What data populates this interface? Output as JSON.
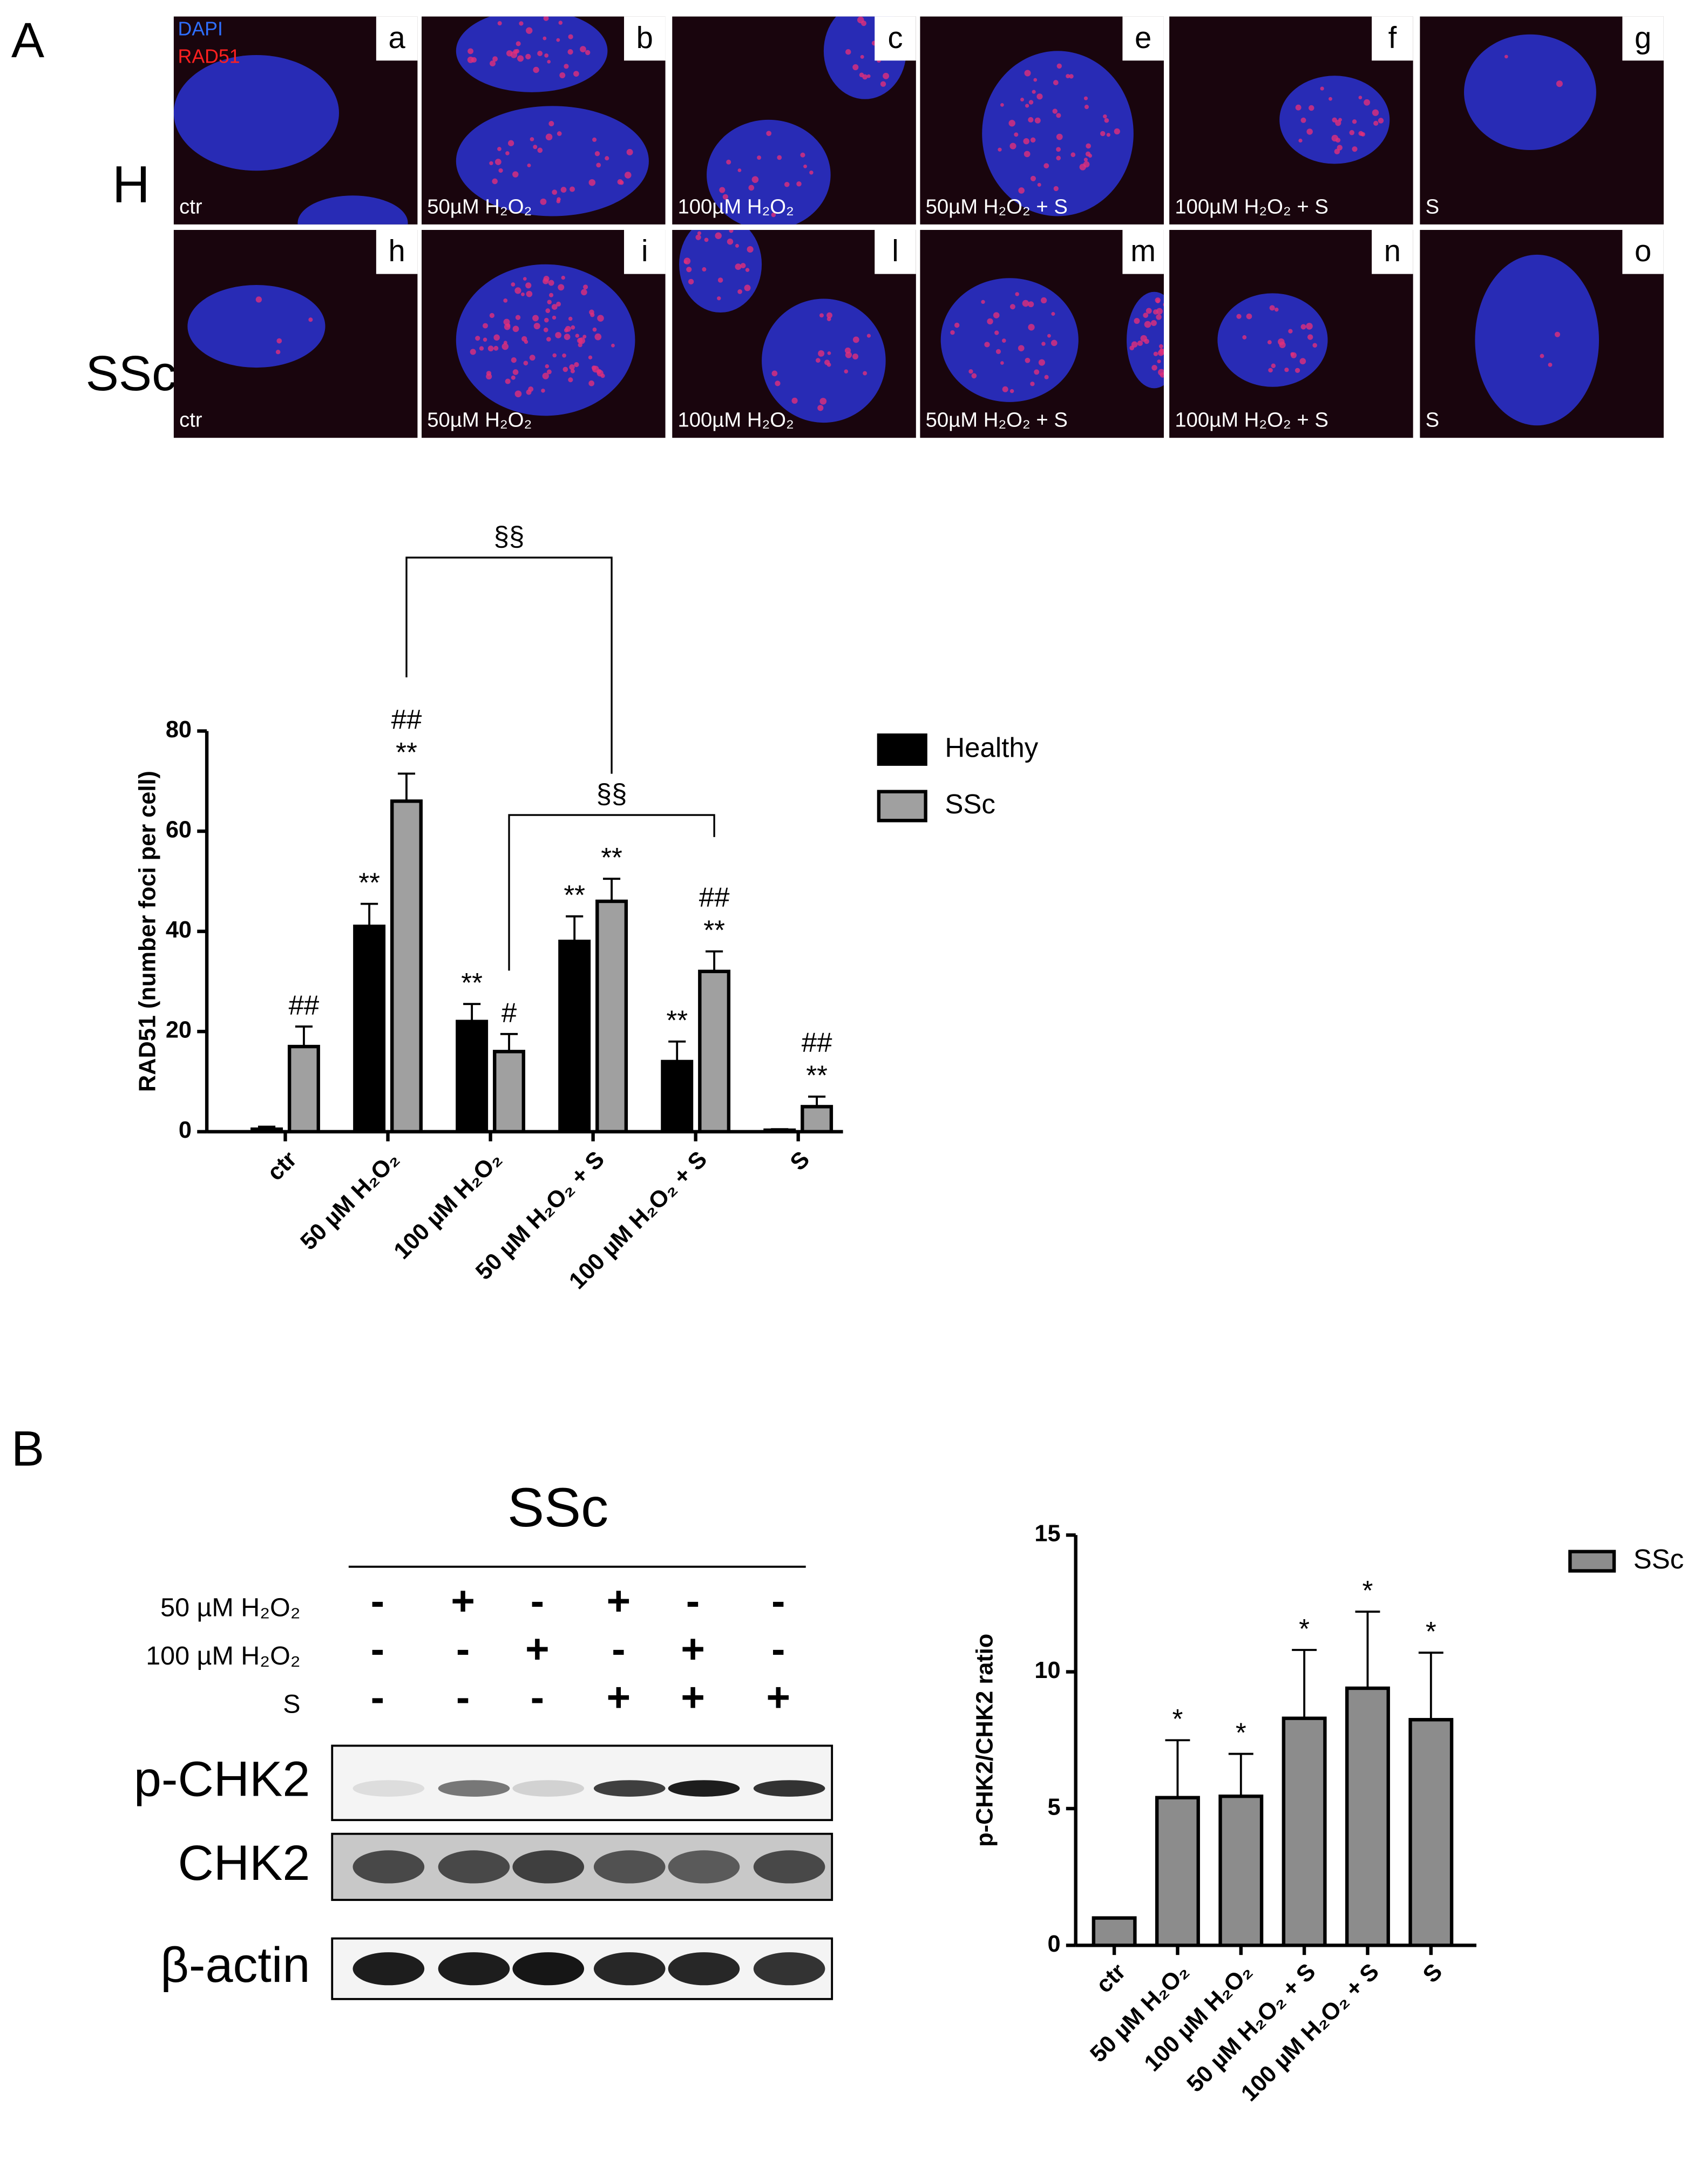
{
  "panel_labels": [
    "A",
    "B"
  ],
  "microscopy": {
    "channels": [
      "DAPI",
      "RAD51"
    ],
    "rows": [
      {
        "label": "H",
        "tiles": [
          {
            "letter": "a",
            "caption": "ctr"
          },
          {
            "letter": "b",
            "caption": "50µM H₂O₂"
          },
          {
            "letter": "c",
            "caption": "100µM H₂O₂"
          },
          {
            "letter": "e",
            "caption": "50µM H₂O₂ + S"
          },
          {
            "letter": "f",
            "caption": "100µM H₂O₂ + S"
          },
          {
            "letter": "g",
            "caption": "S"
          }
        ]
      },
      {
        "label": "SSc",
        "tiles": [
          {
            "letter": "h",
            "caption": "ctr"
          },
          {
            "letter": "i",
            "caption": "50µM H₂O₂"
          },
          {
            "letter": "l",
            "caption": "100µM H₂O₂"
          },
          {
            "letter": "m",
            "caption": "50µM H₂O₂ + S"
          },
          {
            "letter": "n",
            "caption": "100µM H₂O₂ + S"
          },
          {
            "letter": "o",
            "caption": "S"
          }
        ]
      }
    ]
  },
  "chart_data": [
    {
      "type": "bar",
      "y_label": "RAD51 (number foci per cell)",
      "categories": [
        "ctr",
        "50 µM H₂O₂",
        "100 µM H₂O₂",
        "50 µM H₂O₂ + S",
        "100 µM H₂O₂ + S",
        "S"
      ],
      "series": [
        {
          "name": "Healthy",
          "color": "#000000",
          "values": [
            0.5,
            41,
            22,
            38,
            14,
            0.3
          ],
          "errors": [
            0.5,
            4.5,
            3.5,
            5,
            4,
            0.2
          ],
          "significance": [
            null,
            [
              "**"
            ],
            [
              "**"
            ],
            [
              "**"
            ],
            [
              "**"
            ],
            null
          ]
        },
        {
          "name": "SSc",
          "color": "#a0a0a0",
          "values": [
            17,
            66,
            16,
            46,
            32,
            5
          ],
          "errors": [
            4,
            5.5,
            3.5,
            4.5,
            4,
            2
          ],
          "significance": [
            [
              "##"
            ],
            [
              "##",
              "**"
            ],
            [
              "#"
            ],
            [
              "**"
            ],
            [
              "##",
              "**"
            ],
            [
              "##",
              "**"
            ]
          ]
        }
      ],
      "brackets": [
        "§§",
        "§§"
      ],
      "ylim": [
        0,
        80
      ],
      "yticks": [
        0,
        20,
        40,
        60,
        80
      ],
      "legend": "right"
    },
    {
      "type": "bar",
      "y_label": "p-CHK2/CHK2 ratio",
      "categories": [
        "ctr",
        "50 µM H₂O₂",
        "100 µM H₂O₂",
        "50 µM H₂O₂ + S",
        "100 µM H₂O₂ + S",
        "S"
      ],
      "series": [
        {
          "name": "SSc",
          "color": "#8c8c8c",
          "values": [
            1,
            5.4,
            5.45,
            8.3,
            9.4,
            8.25
          ],
          "errors": [
            0,
            2.1,
            1.55,
            2.5,
            2.8,
            2.45
          ],
          "significance": [
            null,
            [
              "*"
            ],
            [
              "*"
            ],
            [
              "*"
            ],
            [
              "*"
            ],
            [
              "*"
            ]
          ]
        }
      ],
      "ylim": [
        0,
        15
      ],
      "yticks": [
        0,
        5,
        10,
        15
      ],
      "legend": "top right"
    }
  ],
  "western_blot": {
    "title": "SSc",
    "treatments": [
      {
        "label": "50 µM H₂O₂",
        "signs": [
          "-",
          "+",
          "-",
          "+",
          "-",
          "-"
        ]
      },
      {
        "label": "100 µM H₂O₂",
        "signs": [
          "-",
          "-",
          "+",
          "-",
          "+",
          "-"
        ]
      },
      {
        "label": "S",
        "signs": [
          "-",
          "-",
          "-",
          "+",
          "+",
          "+"
        ]
      }
    ],
    "blots": [
      "p-CHK2",
      "CHK2",
      "β-actin"
    ]
  }
}
